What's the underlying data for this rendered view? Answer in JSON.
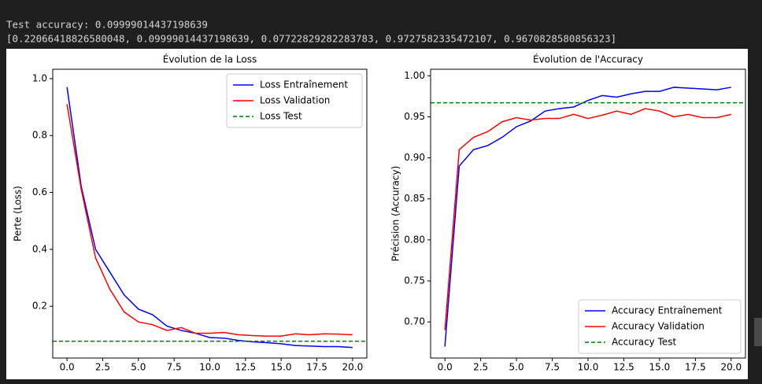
{
  "output_lines": [
    "Test accuracy: 0.09999014437198639",
    "[0.22066418826580048, 0.09999014437198639, 0.07722829282283783, 0.9727582335472107, 0.9670828580856323]"
  ],
  "chart_data": [
    {
      "type": "line",
      "title": "Évolution de la Loss",
      "y_label": "Perte (Loss)",
      "x": [
        0,
        1,
        2,
        3,
        4,
        5,
        6,
        7,
        8,
        9,
        10,
        11,
        12,
        13,
        14,
        15,
        16,
        17,
        18,
        19,
        20
      ],
      "series": [
        {
          "name": "Loss Entraînement",
          "color": "#0000ff",
          "values": [
            0.97,
            0.62,
            0.4,
            0.32,
            0.24,
            0.19,
            0.17,
            0.13,
            0.115,
            0.105,
            0.09,
            0.088,
            0.08,
            0.075,
            0.072,
            0.068,
            0.062,
            0.06,
            0.058,
            0.058,
            0.055
          ]
        },
        {
          "name": "Loss Validation",
          "color": "#ff0000",
          "values": [
            0.91,
            0.61,
            0.37,
            0.26,
            0.18,
            0.145,
            0.135,
            0.115,
            0.125,
            0.105,
            0.105,
            0.108,
            0.1,
            0.097,
            0.095,
            0.095,
            0.103,
            0.1,
            0.103,
            0.102,
            0.1
          ]
        },
        {
          "name": "Loss Test",
          "color": "#008000",
          "dashed": true,
          "hline": 0.07722829282283783
        }
      ],
      "xlim": [
        -1.0,
        21.0
      ],
      "xticks": [
        {
          "value": 0,
          "label": "0.0"
        },
        {
          "value": 2.5,
          "label": "2.5"
        },
        {
          "value": 5,
          "label": "5.0"
        },
        {
          "value": 7.5,
          "label": "7.5"
        },
        {
          "value": 10,
          "label": "10.0"
        },
        {
          "value": 12.5,
          "label": "12.5"
        },
        {
          "value": 15,
          "label": "15.0"
        },
        {
          "value": 17.5,
          "label": "17.5"
        },
        {
          "value": 20,
          "label": "20.0"
        }
      ],
      "ylim": [
        0.018,
        1.033
      ],
      "yticks": [
        0.2,
        0.4,
        0.6,
        0.8,
        {
          "value": 1,
          "label": "1.0"
        }
      ],
      "legend": "upper right"
    },
    {
      "type": "line",
      "title": "Évolution de l'Accuracy",
      "y_label": "Précision (Accuracy)",
      "x": [
        0,
        1,
        2,
        3,
        4,
        5,
        6,
        7,
        8,
        9,
        10,
        11,
        12,
        13,
        14,
        15,
        16,
        17,
        18,
        19,
        20
      ],
      "series": [
        {
          "name": "Accuracy Entraînement",
          "color": "#0000ff",
          "values": [
            0.67,
            0.89,
            0.91,
            0.915,
            0.925,
            0.938,
            0.945,
            0.957,
            0.96,
            0.962,
            0.97,
            0.976,
            0.974,
            0.978,
            0.981,
            0.981,
            0.986,
            0.985,
            0.984,
            0.983,
            0.986
          ]
        },
        {
          "name": "Accuracy Validation",
          "color": "#ff0000",
          "values": [
            0.69,
            0.91,
            0.925,
            0.932,
            0.944,
            0.949,
            0.946,
            0.948,
            0.948,
            0.953,
            0.948,
            0.952,
            0.957,
            0.953,
            0.96,
            0.957,
            0.95,
            0.953,
            0.949,
            0.949,
            0.953
          ]
        },
        {
          "name": "Accuracy Test",
          "color": "#008000",
          "dashed": true,
          "hline": 0.9670828580856323
        }
      ],
      "xlim": [
        -1.0,
        21.0
      ],
      "xticks": [
        {
          "value": 0,
          "label": "0.0"
        },
        {
          "value": 2.5,
          "label": "2.5"
        },
        {
          "value": 5,
          "label": "5.0"
        },
        {
          "value": 7.5,
          "label": "7.5"
        },
        {
          "value": 10,
          "label": "10.0"
        },
        {
          "value": 12.5,
          "label": "12.5"
        },
        {
          "value": 15,
          "label": "15.0"
        },
        {
          "value": 17.5,
          "label": "17.5"
        },
        {
          "value": 20,
          "label": "20.0"
        }
      ],
      "ylim": [
        0.656,
        1.008
      ],
      "yticks": [
        {
          "value": 0.7,
          "label": "0.70"
        },
        {
          "value": 0.75,
          "label": "0.75"
        },
        {
          "value": 0.8,
          "label": "0.80"
        },
        {
          "value": 0.85,
          "label": "0.85"
        },
        {
          "value": 0.9,
          "label": "0.90"
        },
        {
          "value": 0.95,
          "label": "0.95"
        },
        {
          "value": 1,
          "label": "1.00"
        }
      ],
      "legend": "lower right"
    }
  ]
}
